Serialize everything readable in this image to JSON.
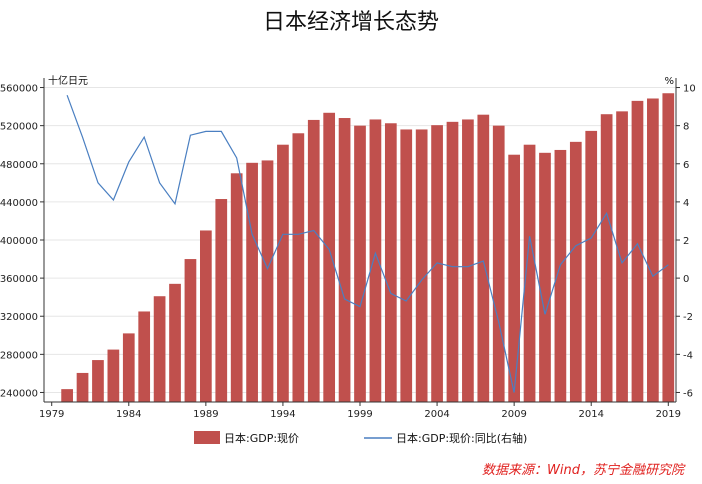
{
  "chart_data": {
    "type": "bar+line",
    "title": "日本经济增长态势",
    "left_unit": "十亿日元",
    "right_unit": "%",
    "x": [
      1979,
      1980,
      1981,
      1982,
      1983,
      1984,
      1985,
      1986,
      1987,
      1988,
      1989,
      1990,
      1991,
      1992,
      1993,
      1994,
      1995,
      1996,
      1997,
      1998,
      1999,
      2000,
      2001,
      2002,
      2003,
      2004,
      2005,
      2006,
      2007,
      2008,
      2009,
      2010,
      2011,
      2012,
      2013,
      2014,
      2015,
      2016,
      2017,
      2018,
      2019
    ],
    "x_ticks": [
      "1979",
      "1984",
      "1989",
      "1994",
      "1999",
      "2004",
      "2009",
      "2014",
      "2019"
    ],
    "left_axis": {
      "min": 230000,
      "max": 570000,
      "ticks": [
        "240000",
        "280000",
        "320000",
        "360000",
        "400000",
        "440000",
        "480000",
        "520000",
        "560000"
      ]
    },
    "right_axis": {
      "min": -6.5,
      "max": 10.5,
      "ticks": [
        "-6",
        "-4",
        "-2",
        "0",
        "2",
        "4",
        "6",
        "8",
        "10"
      ]
    },
    "grid": true,
    "legend_position": "bottom",
    "series": [
      {
        "name": "日本:GDP:现价",
        "kind": "bar",
        "axis": "left",
        "color": "#c0504d",
        "values": [
          null,
          243500,
          260500,
          274000,
          285000,
          302000,
          325000,
          341000,
          354000,
          380000,
          410000,
          443000,
          470000,
          481000,
          483500,
          500000,
          512000,
          526000,
          533500,
          528000,
          520000,
          526500,
          522500,
          516000,
          516000,
          520500,
          524000,
          526500,
          531500,
          520000,
          489500,
          500000,
          491500,
          494500,
          503000,
          514500,
          532000,
          535000,
          546000,
          548500,
          554000
        ]
      },
      {
        "name": "日本:GDP:现价:同比(右轴)",
        "kind": "line",
        "axis": "right",
        "color": "#4a7fc1",
        "values": [
          null,
          9.6,
          7.4,
          5.0,
          4.1,
          6.1,
          7.4,
          5.0,
          3.9,
          7.5,
          7.7,
          7.7,
          6.3,
          2.3,
          0.5,
          2.3,
          2.3,
          2.5,
          1.5,
          -1.1,
          -1.5,
          1.3,
          -0.8,
          -1.2,
          -0.1,
          0.8,
          0.6,
          0.6,
          0.9,
          -2.3,
          -6.0,
          2.2,
          -1.9,
          0.7,
          1.7,
          2.1,
          3.4,
          0.8,
          1.8,
          0.1,
          0.7
        ]
      }
    ]
  },
  "source": "数据来源：Wind，苏宁金融研究院"
}
